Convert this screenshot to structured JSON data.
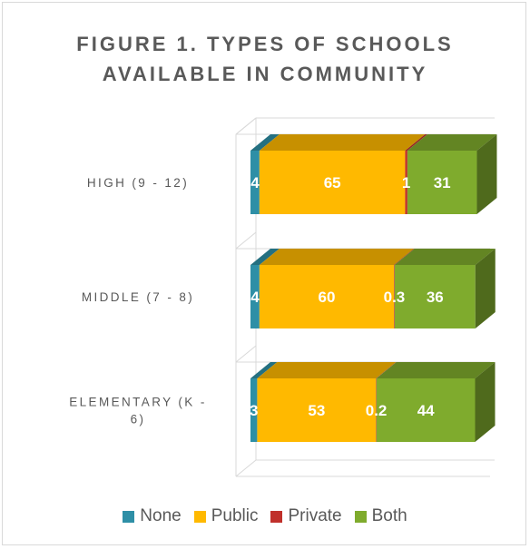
{
  "chart_data": {
    "type": "bar",
    "orientation": "horizontal",
    "stacked": true,
    "percent_stacked": true,
    "three_d": true,
    "title_lines": [
      "FIGURE 1. TYPES OF SCHOOLS",
      "AVAILABLE IN COMMUNITY"
    ],
    "categories": [
      "HIGH (9 - 12)",
      "MIDDLE (7 - 8)",
      "ELEMENTARY (K - 6)"
    ],
    "category_label_lines": [
      [
        "HIGH (9 - 12)"
      ],
      [
        "MIDDLE (7 - 8)"
      ],
      [
        "ELEMENTARY (K -",
        "6)"
      ]
    ],
    "series": [
      {
        "name": "None",
        "color": "#2e8fa6",
        "values": [
          4,
          4,
          3
        ],
        "labels": [
          "4",
          "4",
          "3"
        ]
      },
      {
        "name": "Public",
        "color": "#ffb900",
        "values": [
          65,
          60,
          53
        ],
        "labels": [
          "65",
          "60",
          "53"
        ]
      },
      {
        "name": "Private",
        "color": "#c0302b",
        "values": [
          1,
          0.3,
          0.2
        ],
        "labels": [
          "1",
          "0.3",
          "0.2"
        ]
      },
      {
        "name": "Both",
        "color": "#7fab2d",
        "values": [
          31,
          36,
          44
        ],
        "labels": [
          "31",
          "36",
          "44"
        ]
      }
    ],
    "xlim": [
      0,
      100
    ],
    "grid": false,
    "legend_position": "bottom"
  }
}
